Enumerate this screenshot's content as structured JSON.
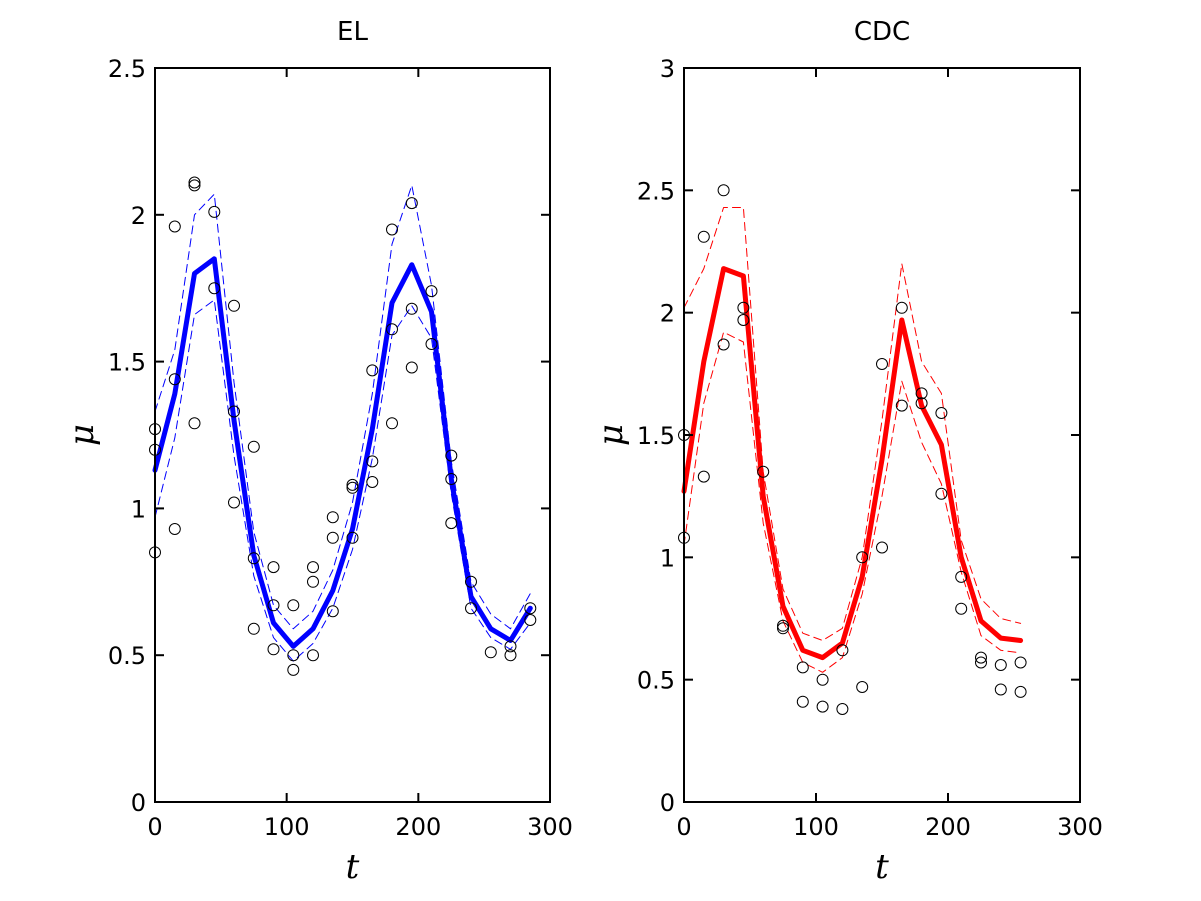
{
  "chart_data": [
    {
      "type": "line",
      "title": "EL",
      "xlabel": "t",
      "ylabel": "μ",
      "xlim": [
        0,
        300
      ],
      "ylim": [
        0,
        2.5
      ],
      "xticks": [
        "0",
        "100",
        "200",
        "300"
      ],
      "yticks": [
        "0",
        "0.5",
        "1",
        "1.5",
        "2",
        "2.5"
      ],
      "color": "#0000ff",
      "grid": false,
      "series": [
        {
          "role": "fit",
          "style": "solid",
          "x": [
            0,
            15,
            30,
            45,
            60,
            75,
            90,
            105,
            120,
            135,
            150,
            165,
            180,
            195,
            210,
            225,
            240,
            255,
            270,
            285
          ],
          "y": [
            1.13,
            1.39,
            1.8,
            1.85,
            1.3,
            0.84,
            0.61,
            0.53,
            0.59,
            0.72,
            0.93,
            1.27,
            1.7,
            1.83,
            1.67,
            1.1,
            0.7,
            0.59,
            0.55,
            0.66
          ]
        },
        {
          "role": "upper-bound",
          "style": "dashed",
          "x": [
            0,
            15,
            30,
            45,
            60,
            75,
            90,
            105,
            120,
            135,
            150,
            165,
            180,
            195,
            210,
            225,
            240,
            255,
            270,
            285
          ],
          "y": [
            1.33,
            1.54,
            2.0,
            2.07,
            1.43,
            0.92,
            0.67,
            0.59,
            0.65,
            0.79,
            1.02,
            1.39,
            1.9,
            2.1,
            1.76,
            1.16,
            0.75,
            0.64,
            0.59,
            0.71
          ]
        },
        {
          "role": "lower-bound",
          "style": "dashed",
          "x": [
            0,
            15,
            30,
            45,
            60,
            75,
            90,
            105,
            120,
            135,
            150,
            165,
            180,
            195,
            210,
            225,
            240,
            255,
            270,
            285
          ],
          "y": [
            0.97,
            1.24,
            1.66,
            1.71,
            1.18,
            0.77,
            0.56,
            0.48,
            0.54,
            0.66,
            0.86,
            1.17,
            1.59,
            1.69,
            1.58,
            1.05,
            0.66,
            0.56,
            0.52,
            0.61
          ]
        },
        {
          "role": "observations",
          "style": "markers",
          "marker": "open-circle",
          "x": [
            0,
            0,
            0,
            15,
            15,
            15,
            30,
            30,
            30,
            45,
            45,
            60,
            60,
            60,
            75,
            75,
            75,
            90,
            90,
            90,
            105,
            105,
            105,
            120,
            120,
            120,
            135,
            135,
            135,
            150,
            150,
            150,
            165,
            165,
            165,
            180,
            180,
            180,
            195,
            195,
            195,
            210,
            210,
            225,
            225,
            225,
            240,
            240,
            255,
            270,
            270,
            285,
            285
          ],
          "y": [
            1.27,
            1.2,
            0.85,
            1.96,
            1.44,
            0.93,
            2.1,
            2.11,
            1.29,
            2.01,
            1.75,
            1.69,
            1.33,
            1.02,
            1.21,
            0.83,
            0.59,
            0.8,
            0.67,
            0.52,
            0.67,
            0.5,
            0.45,
            0.8,
            0.75,
            0.5,
            0.97,
            0.9,
            0.65,
            1.08,
            1.07,
            0.9,
            1.47,
            1.16,
            1.09,
            1.95,
            1.61,
            1.29,
            2.04,
            1.68,
            1.48,
            1.74,
            1.56,
            1.18,
            1.1,
            0.95,
            0.75,
            0.66,
            0.51,
            0.53,
            0.5,
            0.66,
            0.62
          ]
        }
      ]
    },
    {
      "type": "line",
      "title": "CDC",
      "xlabel": "t",
      "ylabel": "μ",
      "xlim": [
        0,
        300
      ],
      "ylim": [
        0,
        3
      ],
      "xticks": [
        "0",
        "100",
        "200",
        "300"
      ],
      "yticks": [
        "0",
        "0.5",
        "1",
        "1.5",
        "2",
        "2.5",
        "3"
      ],
      "color": "#ff0000",
      "grid": false,
      "series": [
        {
          "role": "fit",
          "style": "solid",
          "x": [
            0,
            15,
            30,
            45,
            60,
            75,
            90,
            105,
            120,
            135,
            150,
            165,
            180,
            195,
            210,
            225,
            240,
            255
          ],
          "y": [
            1.27,
            1.8,
            2.18,
            2.15,
            1.25,
            0.8,
            0.62,
            0.59,
            0.65,
            0.92,
            1.4,
            1.97,
            1.62,
            1.46,
            1.0,
            0.74,
            0.67,
            0.66
          ]
        },
        {
          "role": "upper-bound",
          "style": "dashed",
          "x": [
            0,
            15,
            30,
            45,
            60,
            75,
            90,
            105,
            120,
            135,
            150,
            165,
            180,
            195,
            210,
            225,
            240,
            255
          ],
          "y": [
            2.02,
            2.18,
            2.43,
            2.43,
            1.35,
            0.87,
            0.69,
            0.66,
            0.71,
            1.0,
            1.56,
            2.2,
            1.8,
            1.67,
            1.07,
            0.83,
            0.75,
            0.73
          ]
        },
        {
          "role": "lower-bound",
          "style": "dashed",
          "x": [
            0,
            15,
            30,
            45,
            60,
            75,
            90,
            105,
            120,
            135,
            150,
            165,
            180,
            195,
            210,
            225,
            240,
            255
          ],
          "y": [
            1.05,
            1.63,
            1.92,
            1.88,
            1.14,
            0.74,
            0.57,
            0.53,
            0.59,
            0.85,
            1.25,
            1.72,
            1.47,
            1.3,
            0.94,
            0.68,
            0.62,
            0.61
          ]
        },
        {
          "role": "observations",
          "style": "markers",
          "marker": "open-circle",
          "x": [
            0,
            0,
            15,
            15,
            30,
            30,
            45,
            45,
            60,
            75,
            75,
            90,
            90,
            105,
            105,
            120,
            120,
            135,
            135,
            150,
            150,
            165,
            165,
            180,
            180,
            195,
            195,
            210,
            210,
            225,
            225,
            240,
            240,
            255,
            255
          ],
          "y": [
            1.5,
            1.08,
            2.31,
            1.33,
            2.5,
            1.87,
            2.02,
            1.97,
            1.35,
            0.72,
            0.71,
            0.55,
            0.41,
            0.5,
            0.39,
            0.62,
            0.38,
            1.0,
            0.47,
            1.79,
            1.04,
            2.02,
            1.62,
            1.67,
            1.63,
            1.59,
            1.26,
            0.92,
            0.79,
            0.59,
            0.57,
            0.56,
            0.46,
            0.57,
            0.45
          ]
        }
      ]
    }
  ]
}
